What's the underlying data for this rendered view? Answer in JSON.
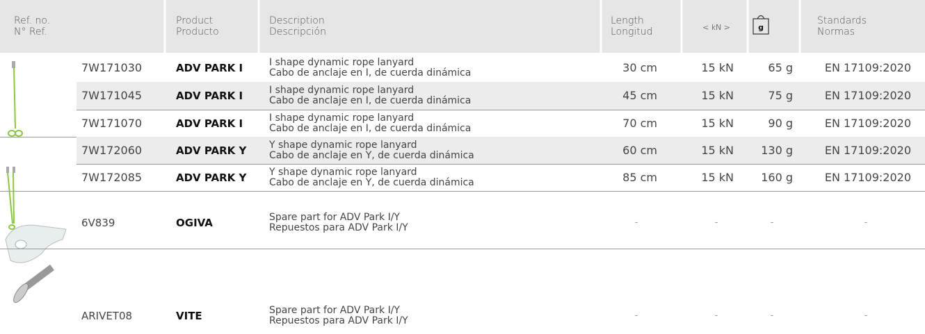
{
  "header": {
    "ref": [
      "Ref. no.",
      "N° Ref."
    ],
    "product": [
      "Product",
      "Producto"
    ],
    "description": [
      "Description",
      "Descripción"
    ],
    "length": [
      "Length",
      "Longitud"
    ],
    "strength": "< kN >",
    "weight": "g",
    "standards": [
      "Standards",
      "Normas"
    ]
  },
  "rows": [
    {
      "ref": "7W171030",
      "product": "ADV PARK I",
      "description": [
        "I shape dynamic rope lanyard",
        "Cabo de anclaje en I, de cuerda dinámica"
      ],
      "length": "30 cm",
      "strength": "15 kN",
      "weight": "65 g",
      "standard": "EN 17109:2020"
    },
    {
      "ref": "7W171045",
      "product": "ADV PARK I",
      "description": [
        "I shape dynamic rope lanyard",
        "Cabo de anclaje en I, de cuerda dinámica"
      ],
      "length": "45 cm",
      "strength": "15 kN",
      "weight": "75 g",
      "standard": "EN 17109:2020"
    },
    {
      "ref": "7W171070",
      "product": "ADV PARK I",
      "description": [
        "I shape dynamic rope lanyard",
        "Cabo de anclaje en I, de cuerda dinámica"
      ],
      "length": "70 cm",
      "strength": "15 kN",
      "weight": "90 g",
      "standard": "EN 17109:2020"
    },
    {
      "ref": "7W172060",
      "product": "ADV PARK Y",
      "description": [
        "Y shape dynamic rope lanyard",
        "Cabo de anclaje en Y, de cuerda dinámica"
      ],
      "length": "60 cm",
      "strength": "15 kN",
      "weight": "130 g",
      "standard": "EN 17109:2020"
    },
    {
      "ref": "7W172085",
      "product": "ADV PARK Y",
      "description": [
        "Y shape dynamic rope lanyard",
        "Cabo de anclaje en Y, de cuerda dinámica"
      ],
      "length": "85 cm",
      "strength": "15 kN",
      "weight": "160 g",
      "standard": "EN 17109:2020"
    },
    {
      "ref": "6V839",
      "product": "OGIVA",
      "description": [
        "Spare part for ADV Park I/Y",
        "Repuestos para ADV Park I/Y"
      ],
      "length": "-",
      "strength": "-",
      "weight": "-",
      "standard": "-"
    },
    {
      "ref": "ARIVET08",
      "product": "VITE",
      "description": [
        "Spare part for ADV Park I/Y",
        "Repuestos para ADV Park I/Y"
      ],
      "length": "-",
      "strength": "-",
      "weight": "-",
      "standard": "-"
    }
  ]
}
